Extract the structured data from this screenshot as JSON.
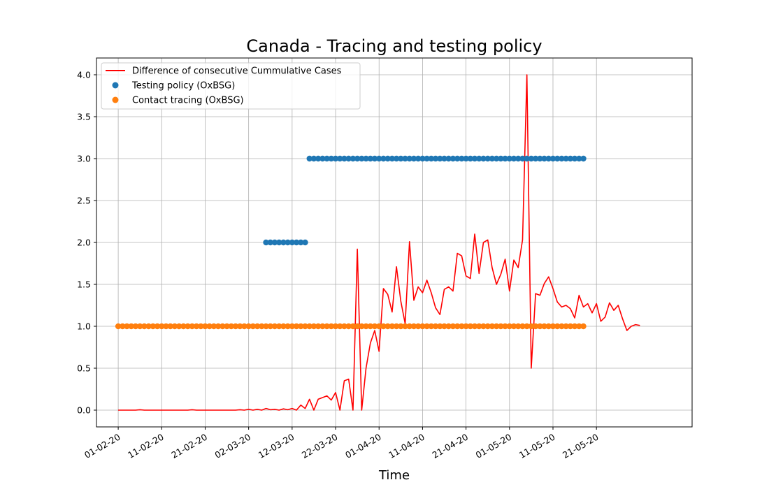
{
  "chart_data": {
    "type": "line",
    "title": "Canada - Tracing and testing policy",
    "xlabel": "Time",
    "ylabel": "",
    "x_tick_labels": [
      "01-02-20",
      "11-02-20",
      "21-02-20",
      "02-03-20",
      "12-03-20",
      "22-03-20",
      "01-04-20",
      "11-04-20",
      "21-04-20",
      "01-05-20",
      "11-05-20",
      "21-05-20"
    ],
    "x_tick_rotation_deg": -30,
    "y_tick_labels": [
      "0.0",
      "0.5",
      "1.0",
      "1.5",
      "2.0",
      "2.5",
      "3.0",
      "3.5",
      "4.0"
    ],
    "xlim": [
      "2020-01-27",
      "2020-06-12"
    ],
    "ylim": [
      -0.2,
      4.2
    ],
    "grid": true,
    "legend_position": "top-left",
    "series": [
      {
        "name": "Difference of consecutive Cummulative Cases",
        "style": "line",
        "color": "#ff0000",
        "x_start": "2020-02-01",
        "x_step_days": 1,
        "values": [
          0,
          0,
          0,
          0,
          0,
          0.005,
          0,
          0,
          0,
          0,
          0,
          0,
          0,
          0,
          0,
          0,
          0,
          0.005,
          0,
          0,
          0,
          0,
          0,
          0,
          0,
          0,
          0,
          0,
          0.005,
          0,
          0.01,
          0,
          0.01,
          0,
          0.02,
          0.005,
          0.01,
          0,
          0.015,
          0.005,
          0.02,
          0,
          0.06,
          0.02,
          0.13,
          0,
          0.13,
          0.15,
          0.17,
          0.12,
          0.21,
          0,
          0.35,
          0.37,
          0,
          1.92,
          0,
          0.5,
          0.8,
          0.95,
          0.7,
          1.45,
          1.38,
          1.17,
          1.71,
          1.3,
          1.03,
          2.01,
          1.31,
          1.47,
          1.4,
          1.55,
          1.4,
          1.22,
          1.14,
          1.44,
          1.47,
          1.42,
          1.87,
          1.84,
          1.6,
          1.57,
          2.1,
          1.63,
          2.0,
          2.03,
          1.7,
          1.5,
          1.62,
          1.8,
          1.42,
          1.79,
          1.7,
          2.03,
          4.0,
          0.5,
          1.39,
          1.37,
          1.51,
          1.59,
          1.45,
          1.29,
          1.23,
          1.25,
          1.21,
          1.1,
          1.37,
          1.23,
          1.27,
          1.16,
          1.27,
          1.06,
          1.11,
          1.28,
          1.19,
          1.25,
          1.09,
          0.95,
          1.0,
          1.02,
          1.01
        ]
      },
      {
        "name": "Testing policy (OxBSG)",
        "style": "marker",
        "color": "#1f77b4",
        "segments": [
          {
            "x_start": "2020-03-06",
            "x_end": "2020-03-15",
            "value": 2.0
          },
          {
            "x_start": "2020-03-16",
            "x_end": "2020-05-18",
            "value": 3.0
          }
        ]
      },
      {
        "name": "Contact tracing (OxBSG)",
        "style": "marker",
        "color": "#ff7f0e",
        "segments": [
          {
            "x_start": "2020-02-01",
            "x_end": "2020-05-18",
            "value": 1.0
          }
        ]
      }
    ]
  }
}
